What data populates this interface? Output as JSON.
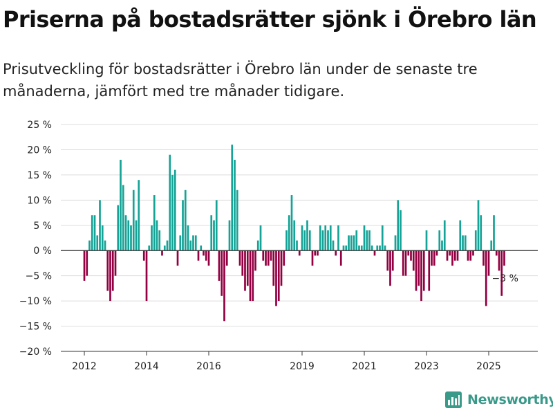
{
  "header": {
    "title": "Priserna på bostadsrätter sjönk i Örebro län",
    "subtitle": "Prisutveckling för bostadsrätter i Örebro län under de senaste tre månaderna, jämfört med tre månader tidigare."
  },
  "brand": {
    "name": "Newsworthy",
    "logo_icon": "bar-chart-logo-icon"
  },
  "colors": {
    "positive": "#14a396",
    "negative": "#930042",
    "text": "#222222",
    "grid": "#dddddd"
  },
  "chart_data": {
    "type": "bar",
    "title": "Priserna på bostadsrätter sjönk i Örebro län",
    "subtitle": "Prisutveckling för bostadsrätter i Örebro län under de senaste tre månaderna, jämfört med tre månader tidigare.",
    "ylim": [
      -20,
      25
    ],
    "yticks": [
      -20,
      -15,
      -10,
      -5,
      0,
      5,
      10,
      15,
      20,
      25
    ],
    "ytick_labels": [
      "−20 %",
      "−15 %",
      "−10 %",
      "−5 %",
      "0 %",
      "5 %",
      "10 %",
      "15 %",
      "20 %",
      "25 %"
    ],
    "x_start": "2012-01",
    "frequency": "monthly",
    "xticks": [
      "2012",
      "2014",
      "2016",
      "2019",
      "2021",
      "2023",
      "2025"
    ],
    "grid": true,
    "annotation": {
      "label": "−3 %",
      "value": -3,
      "at": "last"
    },
    "values": [
      -6,
      -5,
      2,
      7,
      7,
      3,
      10,
      5,
      2,
      -8,
      -10,
      -8,
      -5,
      9,
      18,
      13,
      7,
      6,
      5,
      12,
      6,
      14,
      0,
      -2,
      -10,
      1,
      5,
      11,
      6,
      4,
      -1,
      1,
      2,
      19,
      15,
      16,
      -3,
      3,
      10,
      12,
      5,
      2,
      3,
      3,
      -2,
      1,
      -1,
      -2,
      -3,
      7,
      6,
      10,
      -6,
      -9,
      -14,
      -3,
      6,
      21,
      18,
      12,
      -3,
      -5,
      -8,
      -7,
      -10,
      -10,
      -4,
      2,
      5,
      -2,
      -3,
      -3,
      -2,
      -7,
      -11,
      -10,
      -7,
      -3,
      4,
      7,
      11,
      6,
      2,
      -1,
      5,
      4,
      6,
      4,
      -3,
      -1,
      -1,
      5,
      4,
      5,
      4,
      5,
      2,
      -1,
      5,
      -3,
      1,
      1,
      3,
      3,
      3,
      4,
      1,
      1,
      5,
      4,
      4,
      1,
      -1,
      1,
      1,
      5,
      1,
      -4,
      -7,
      -4,
      3,
      10,
      8,
      -5,
      -5,
      -1,
      -2,
      -4,
      -8,
      -7,
      -10,
      -8,
      4,
      -8,
      -3,
      -3,
      -1,
      4,
      2,
      6,
      -2,
      -1,
      -3,
      -2,
      -2,
      6,
      3,
      3,
      -2,
      -2,
      -1,
      4,
      10,
      7,
      -3,
      -11,
      -5,
      2,
      7,
      -1,
      -4,
      -9,
      -3
    ]
  }
}
